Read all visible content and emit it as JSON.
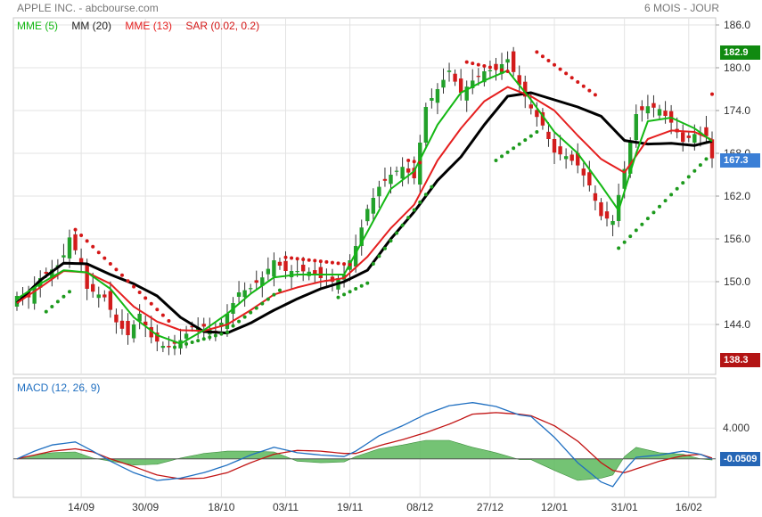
{
  "header": {
    "title": "APPLE INC. - abcbourse.com",
    "period": "6 MOIS - JOUR"
  },
  "colors": {
    "up": "#22a12a",
    "down": "#d21c1c",
    "mme5": "#14b814",
    "mm20": "#000000",
    "mme13": "#e51f1f",
    "sar_up": "#1d9a1d",
    "sar_down": "#d41717",
    "macd": "#1f6fc1",
    "signal": "#c21515",
    "histogram": "#5cb85c",
    "badge_high": "#108a10",
    "badge_last": "#3b7fd6",
    "badge_low": "#b31414",
    "badge_macd": "#2566b6"
  },
  "chart_data": [
    {
      "type": "candlestick",
      "legend": [
        {
          "label": "MME (5)",
          "color": "#14b814"
        },
        {
          "label": "MM (20)",
          "color": "#222222"
        },
        {
          "label": "MME (13)",
          "color": "#e51f1f"
        },
        {
          "label": "SAR (0.02, 0.2)",
          "color": "#d41717"
        }
      ],
      "ylim": [
        137,
        187
      ],
      "y_ticks": [
        "186.0",
        "180.0",
        "174.0",
        "168.0",
        "162.0",
        "156.0",
        "150.0",
        "144.0"
      ],
      "x_ticks": [
        "14/09",
        "30/09",
        "18/10",
        "03/11",
        "19/11",
        "08/12",
        "27/12",
        "12/01",
        "31/01",
        "16/02"
      ],
      "x_tick_index": [
        11,
        22,
        35,
        46,
        57,
        69,
        81,
        92,
        104,
        115
      ],
      "n_points": 120,
      "close_anchors": [
        [
          0,
          148
        ],
        [
          2,
          147.8
        ],
        [
          4,
          150.5
        ],
        [
          7,
          152.3
        ],
        [
          8,
          153.7
        ],
        [
          9,
          156.2
        ],
        [
          11,
          152.6
        ],
        [
          12,
          149
        ],
        [
          15,
          147.8
        ],
        [
          17,
          144.3
        ],
        [
          19,
          142.5
        ],
        [
          21,
          145.5
        ],
        [
          23,
          142.2
        ],
        [
          25,
          141
        ],
        [
          26,
          140.8
        ],
        [
          28,
          141.8
        ],
        [
          30,
          143.6
        ],
        [
          32,
          143.7
        ],
        [
          34,
          143
        ],
        [
          36,
          145.5
        ],
        [
          38,
          148.5
        ],
        [
          40,
          149.1
        ],
        [
          42,
          150.6
        ],
        [
          44,
          153
        ],
        [
          46,
          151.5
        ],
        [
          48,
          151.5
        ],
        [
          50,
          151.4
        ],
        [
          52,
          150.5
        ],
        [
          54,
          150
        ],
        [
          56,
          151
        ],
        [
          58,
          155
        ],
        [
          60,
          160.2
        ],
        [
          62,
          163.3
        ],
        [
          64,
          165
        ],
        [
          66,
          166.1
        ],
        [
          68,
          164.5
        ],
        [
          70,
          174.5
        ],
        [
          72,
          177
        ],
        [
          74,
          179.6
        ],
        [
          76,
          176.5
        ],
        [
          78,
          178.2
        ],
        [
          80,
          179.5
        ],
        [
          82,
          179.8
        ],
        [
          84,
          181.2
        ],
        [
          86,
          177.6
        ],
        [
          88,
          174.3
        ],
        [
          90,
          171.9
        ],
        [
          92,
          168.1
        ],
        [
          94,
          167.6
        ],
        [
          96,
          166.3
        ],
        [
          98,
          163.5
        ],
        [
          100,
          159.2
        ],
        [
          102,
          158.5
        ],
        [
          104,
          165.8
        ],
        [
          106,
          173.5
        ],
        [
          108,
          174.6
        ],
        [
          110,
          174.2
        ],
        [
          112,
          172.3
        ],
        [
          114,
          169.6
        ],
        [
          116,
          170.7
        ],
        [
          118,
          170.4
        ],
        [
          119,
          167.3
        ]
      ],
      "mme5_anchors": [
        [
          0,
          147.6
        ],
        [
          4,
          149.7
        ],
        [
          8,
          151.6
        ],
        [
          12,
          151.3
        ],
        [
          16,
          149
        ],
        [
          20,
          145
        ],
        [
          24,
          142.5
        ],
        [
          28,
          141.3
        ],
        [
          32,
          143.2
        ],
        [
          36,
          145.5
        ],
        [
          40,
          148.3
        ],
        [
          44,
          150.6
        ],
        [
          48,
          151
        ],
        [
          52,
          151
        ],
        [
          56,
          151
        ],
        [
          60,
          157
        ],
        [
          64,
          163
        ],
        [
          68,
          165.5
        ],
        [
          72,
          172
        ],
        [
          76,
          176.5
        ],
        [
          80,
          178.2
        ],
        [
          84,
          179.6
        ],
        [
          88,
          175.5
        ],
        [
          92,
          171
        ],
        [
          96,
          168
        ],
        [
          100,
          163.5
        ],
        [
          103,
          160
        ],
        [
          106,
          168
        ],
        [
          108,
          172.5
        ],
        [
          112,
          173
        ],
        [
          116,
          171.5
        ],
        [
          119,
          169.7
        ]
      ],
      "mm20_anchors": [
        [
          0,
          147
        ],
        [
          4,
          150.2
        ],
        [
          8,
          152.6
        ],
        [
          12,
          152.5
        ],
        [
          16,
          151
        ],
        [
          20,
          149.7
        ],
        [
          24,
          148
        ],
        [
          28,
          145
        ],
        [
          32,
          143
        ],
        [
          36,
          142.8
        ],
        [
          40,
          144.2
        ],
        [
          44,
          146
        ],
        [
          48,
          147.6
        ],
        [
          52,
          149
        ],
        [
          56,
          150
        ],
        [
          60,
          151.6
        ],
        [
          64,
          156
        ],
        [
          68,
          159.8
        ],
        [
          72,
          164.2
        ],
        [
          76,
          167.5
        ],
        [
          80,
          172
        ],
        [
          84,
          176
        ],
        [
          88,
          176.5
        ],
        [
          92,
          175.5
        ],
        [
          96,
          174.5
        ],
        [
          100,
          173.2
        ],
        [
          104,
          169.8
        ],
        [
          108,
          169.3
        ],
        [
          112,
          169.4
        ],
        [
          116,
          169.1
        ],
        [
          119,
          169.7
        ]
      ],
      "mme13_anchors": [
        [
          0,
          147
        ],
        [
          4,
          149.2
        ],
        [
          8,
          151.5
        ],
        [
          12,
          151.3
        ],
        [
          16,
          149.7
        ],
        [
          20,
          146.5
        ],
        [
          24,
          144.4
        ],
        [
          28,
          143.2
        ],
        [
          32,
          143.1
        ],
        [
          36,
          144
        ],
        [
          40,
          146
        ],
        [
          44,
          148.2
        ],
        [
          48,
          149.2
        ],
        [
          52,
          150
        ],
        [
          56,
          150.5
        ],
        [
          60,
          153.5
        ],
        [
          64,
          157.5
        ],
        [
          68,
          160.8
        ],
        [
          72,
          167
        ],
        [
          76,
          171.5
        ],
        [
          80,
          175.3
        ],
        [
          84,
          177.3
        ],
        [
          88,
          176
        ],
        [
          92,
          174
        ],
        [
          96,
          170.5
        ],
        [
          100,
          167.2
        ],
        [
          104,
          165.3
        ],
        [
          108,
          170
        ],
        [
          112,
          171.2
        ],
        [
          116,
          171
        ],
        [
          119,
          169.9
        ]
      ],
      "sar_segments": [
        {
          "trend": "up",
          "from": 5,
          "to": 9,
          "start": 145.8,
          "end": 148.6
        },
        {
          "trend": "down",
          "from": 10,
          "to": 26,
          "start": 157.3,
          "end": 144.5
        },
        {
          "trend": "up",
          "from": 27,
          "to": 36,
          "start": 140.8,
          "end": 142.9
        },
        {
          "trend": "up",
          "from": 37,
          "to": 45,
          "start": 143.8,
          "end": 148.8
        },
        {
          "trend": "down",
          "from": 46,
          "to": 57,
          "start": 153.4,
          "end": 152.4
        },
        {
          "trend": "up",
          "from": 55,
          "to": 60,
          "start": 147.8,
          "end": 149.8
        },
        {
          "trend": "up",
          "from": 61,
          "to": 71,
          "start": 152.5,
          "end": 163.3
        },
        {
          "trend": "down",
          "from": 67,
          "to": 69,
          "start": 167,
          "end": 166.7
        },
        {
          "trend": "down",
          "from": 77,
          "to": 84,
          "start": 180.8,
          "end": 179.5
        },
        {
          "trend": "up",
          "from": 82,
          "to": 89,
          "start": 167,
          "end": 171
        },
        {
          "trend": "down",
          "from": 89,
          "to": 99,
          "start": 182.2,
          "end": 176.2
        },
        {
          "trend": "up",
          "from": 103,
          "to": 118,
          "start": 154.7,
          "end": 167.2
        },
        {
          "trend": "down",
          "from": 119,
          "to": 119,
          "start": 176.3,
          "end": 176.3
        }
      ],
      "price_labels": {
        "high": "182.9",
        "last": "167.3",
        "low": "138.3"
      }
    },
    {
      "type": "line",
      "title": "MACD (12, 26, 9)",
      "ylim": [
        -5,
        10.5
      ],
      "y_ticks": [
        "4.000"
      ],
      "macd_anchors": [
        [
          0,
          0
        ],
        [
          3,
          1
        ],
        [
          6,
          1.8
        ],
        [
          10,
          2.2
        ],
        [
          13,
          1
        ],
        [
          16,
          -0.3
        ],
        [
          20,
          -1.8
        ],
        [
          24,
          -2.8
        ],
        [
          28,
          -2.5
        ],
        [
          32,
          -1.8
        ],
        [
          36,
          -0.8
        ],
        [
          40,
          0.5
        ],
        [
          44,
          1.5
        ],
        [
          48,
          0.8
        ],
        [
          52,
          0.5
        ],
        [
          56,
          0.3
        ],
        [
          58,
          1
        ],
        [
          62,
          3
        ],
        [
          66,
          4.3
        ],
        [
          70,
          5.8
        ],
        [
          74,
          6.9
        ],
        [
          78,
          7.3
        ],
        [
          82,
          6.8
        ],
        [
          86,
          5.7
        ],
        [
          88,
          5.5
        ],
        [
          92,
          2.8
        ],
        [
          96,
          -0.5
        ],
        [
          100,
          -3
        ],
        [
          102,
          -3.6
        ],
        [
          104,
          -1.5
        ],
        [
          106,
          0.2
        ],
        [
          110,
          0.5
        ],
        [
          114,
          1
        ],
        [
          117,
          0.6
        ],
        [
          119,
          -0.05
        ]
      ],
      "signal_anchors": [
        [
          0,
          0
        ],
        [
          3,
          0.5
        ],
        [
          6,
          1
        ],
        [
          10,
          1.3
        ],
        [
          13,
          0.9
        ],
        [
          16,
          0
        ],
        [
          20,
          -1
        ],
        [
          24,
          -2.1
        ],
        [
          28,
          -2.6
        ],
        [
          32,
          -2.5
        ],
        [
          36,
          -1.8
        ],
        [
          40,
          -0.5
        ],
        [
          44,
          0.6
        ],
        [
          48,
          1.1
        ],
        [
          52,
          1
        ],
        [
          56,
          0.7
        ],
        [
          58,
          0.7
        ],
        [
          62,
          1.7
        ],
        [
          66,
          2.5
        ],
        [
          70,
          3.4
        ],
        [
          74,
          4.5
        ],
        [
          78,
          5.8
        ],
        [
          82,
          6
        ],
        [
          86,
          5.8
        ],
        [
          88,
          5.6
        ],
        [
          92,
          4.3
        ],
        [
          96,
          2.3
        ],
        [
          100,
          -0.5
        ],
        [
          102,
          -1.5
        ],
        [
          104,
          -1.8
        ],
        [
          106,
          -1.3
        ],
        [
          110,
          -0.3
        ],
        [
          114,
          0.4
        ],
        [
          117,
          0.6
        ],
        [
          119,
          0.1
        ]
      ],
      "macd_label": "-0.0509"
    }
  ]
}
